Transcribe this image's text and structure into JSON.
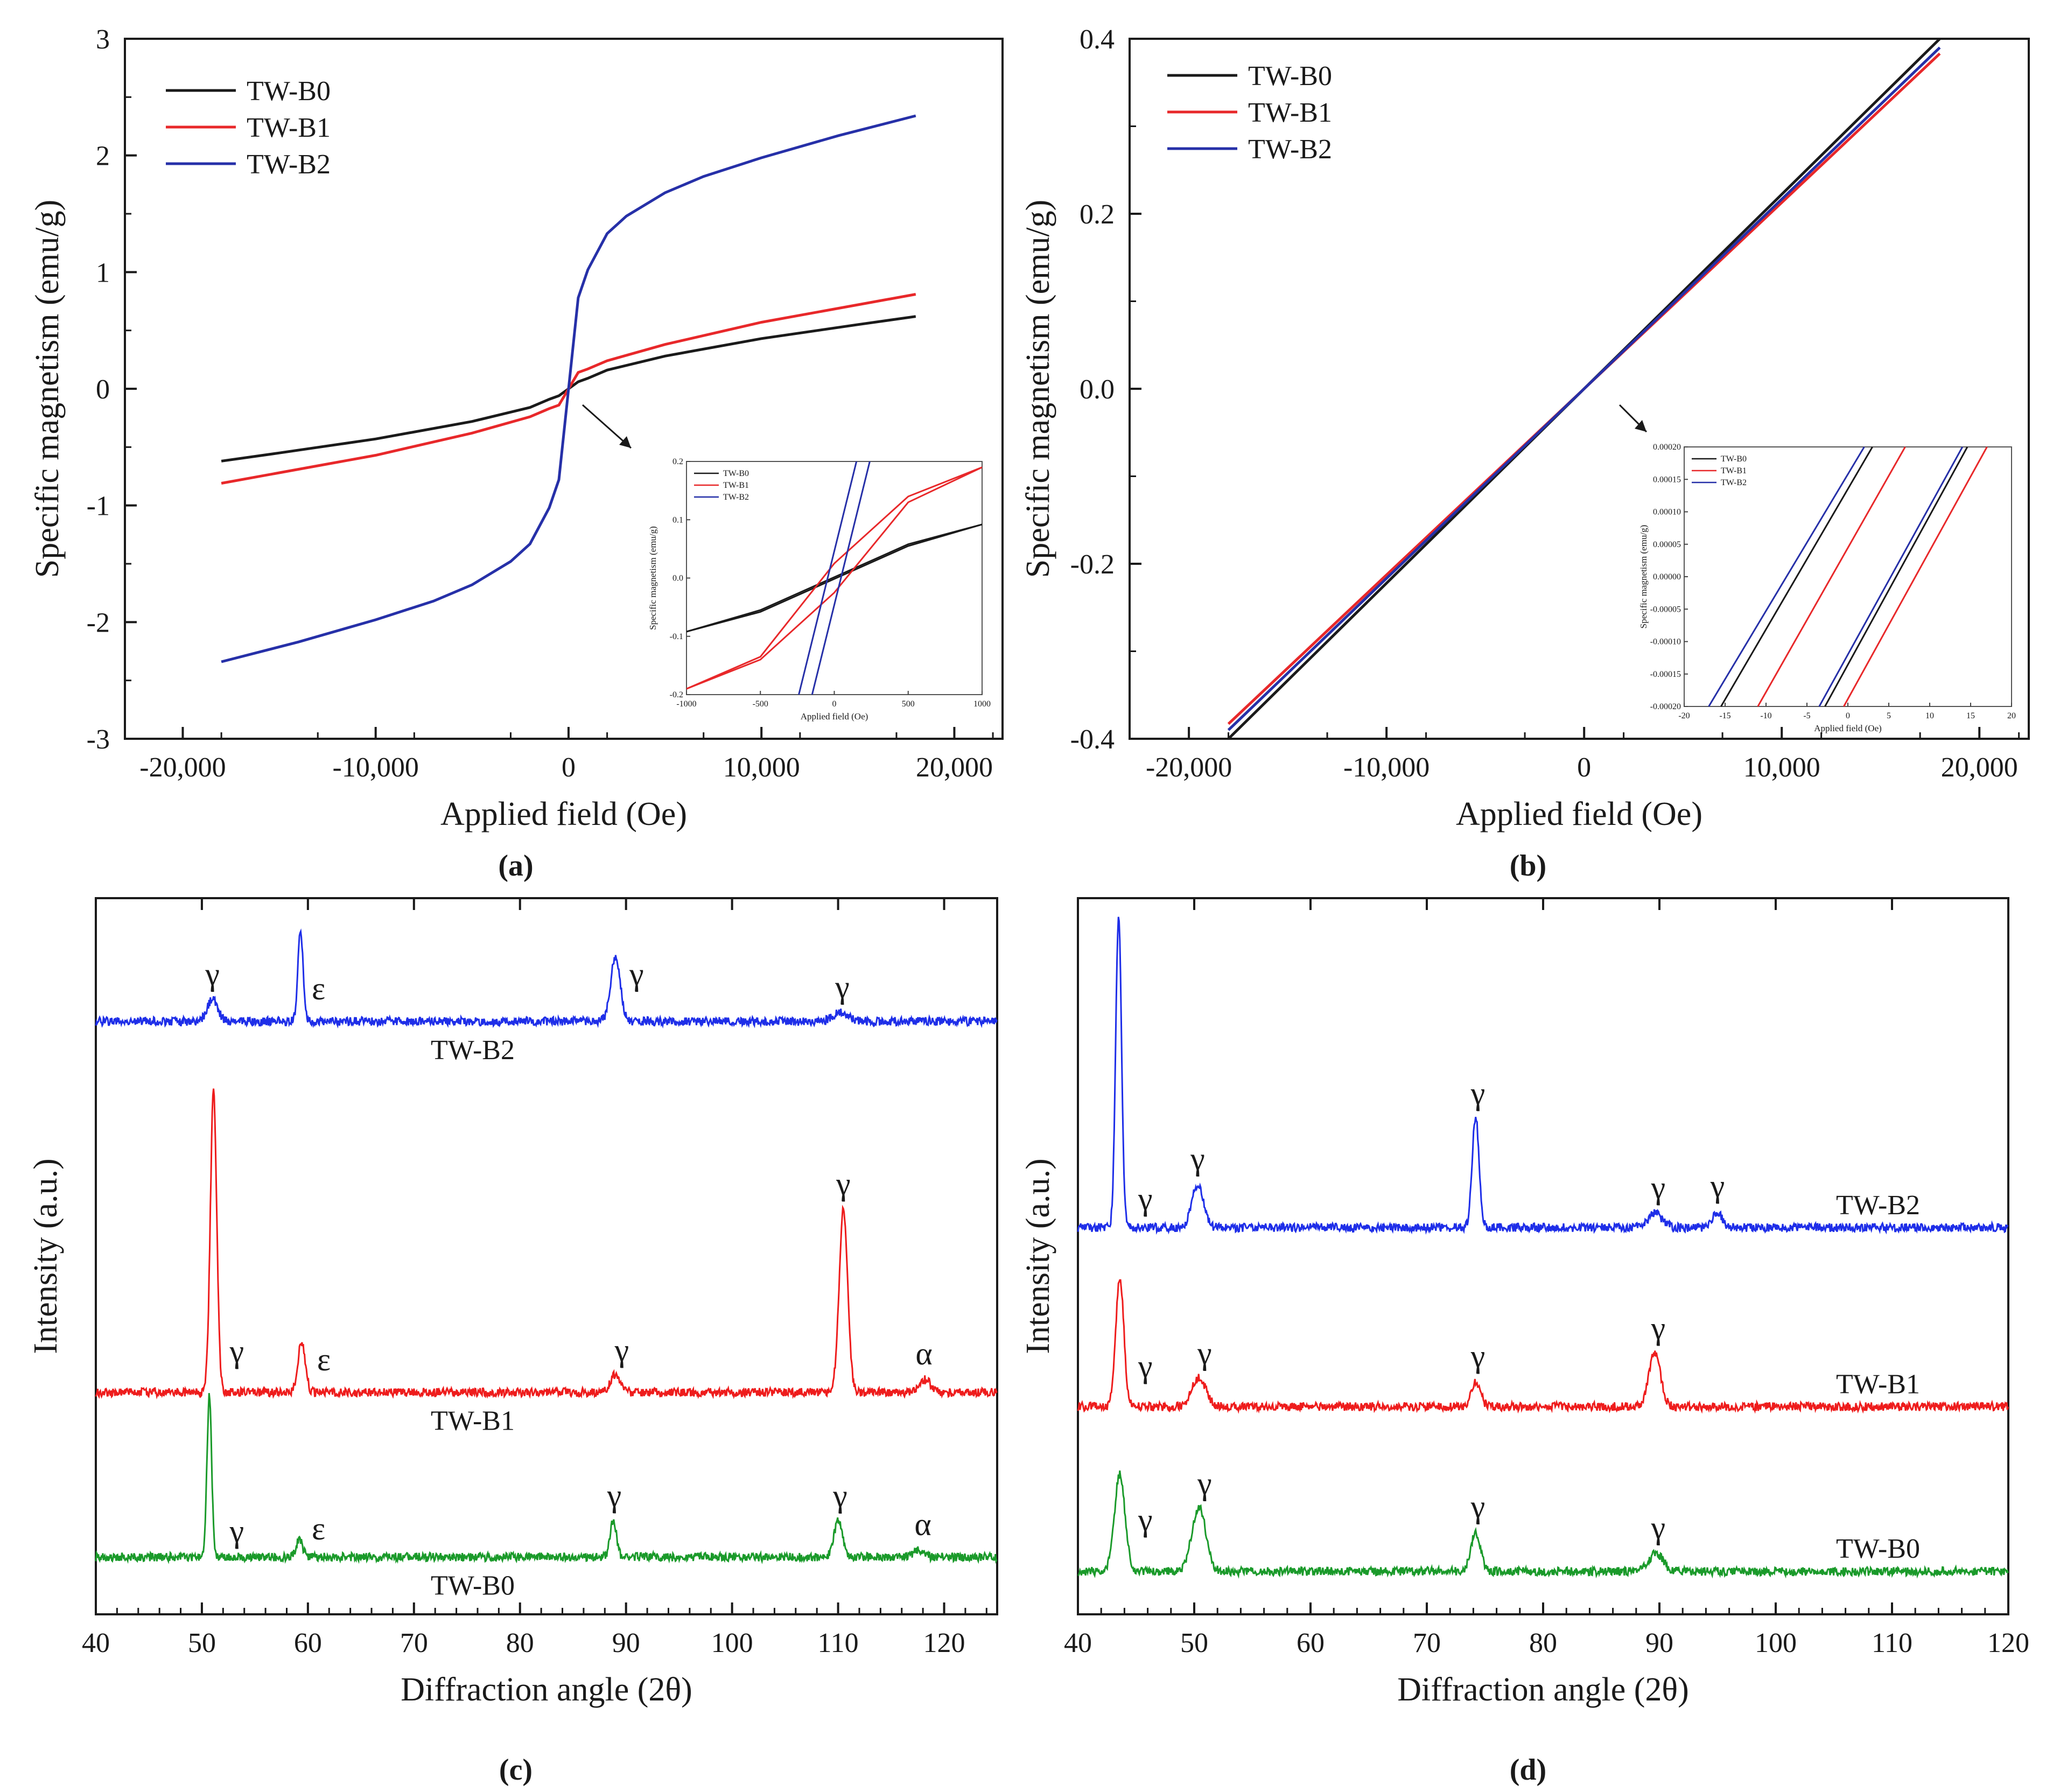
{
  "colors": {
    "TW-B0": "#1a1a1a",
    "TW-B1": "#e8282a",
    "TW-B2": "#2630a8",
    "xrd_b0": "#1a9a2a",
    "xrd_b1": "#ee1c1c",
    "xrd_b2": "#1e2ee8"
  },
  "chart_data": [
    {
      "panel": "(a)",
      "type": "line",
      "xlabel": "Applied field (Oe)",
      "ylabel": "Specific magnetism (emu/g)",
      "xlim": [
        -23000,
        22500
      ],
      "ylim": [
        -3,
        3
      ],
      "xticks": [
        -20000,
        -10000,
        0,
        10000,
        20000
      ],
      "xtick_labels": [
        "-20,000",
        "-10,000",
        "0",
        "10,000",
        "20,000"
      ],
      "yticks": [
        -3,
        -2,
        -1,
        0,
        1,
        2,
        3
      ],
      "ytick_labels": [
        "-3",
        "-2",
        "-1",
        "0",
        "1",
        "2",
        "3"
      ],
      "legend": [
        "TW-B0",
        "TW-B1",
        "TW-B2"
      ],
      "series": [
        {
          "name": "TW-B0",
          "x": [
            -18000,
            -15000,
            -10000,
            -5000,
            -2000,
            -1000,
            -500,
            0,
            500,
            1000,
            2000,
            5000,
            10000,
            15000,
            18000
          ],
          "y": [
            -0.62,
            -0.55,
            -0.43,
            -0.28,
            -0.16,
            -0.09,
            -0.06,
            0,
            0.06,
            0.09,
            0.16,
            0.28,
            0.43,
            0.55,
            0.62
          ]
        },
        {
          "name": "TW-B1",
          "x": [
            -18000,
            -15000,
            -10000,
            -5000,
            -2000,
            -1000,
            -500,
            0,
            500,
            1000,
            2000,
            5000,
            10000,
            15000,
            18000
          ],
          "y": [
            -0.81,
            -0.72,
            -0.57,
            -0.38,
            -0.24,
            -0.17,
            -0.14,
            0,
            0.14,
            0.17,
            0.24,
            0.38,
            0.57,
            0.72,
            0.81
          ]
        },
        {
          "name": "TW-B2",
          "x": [
            -18000,
            -14000,
            -10000,
            -7000,
            -5000,
            -3000,
            -2000,
            -1000,
            -500,
            0,
            500,
            1000,
            2000,
            3000,
            5000,
            7000,
            10000,
            14000,
            18000
          ],
          "y": [
            -2.34,
            -2.17,
            -1.98,
            -1.82,
            -1.68,
            -1.48,
            -1.33,
            -1.02,
            -0.78,
            0,
            0.78,
            1.02,
            1.33,
            1.48,
            1.68,
            1.82,
            1.98,
            2.17,
            2.34
          ]
        }
      ],
      "inset": {
        "xlabel": "Applied field (Oe)",
        "ylabel": "Specific magnetism (emu/g)",
        "xlim": [
          -1000,
          1000
        ],
        "ylim": [
          -0.2,
          0.2
        ],
        "xticks": [
          -1000,
          -500,
          0,
          500,
          1000
        ],
        "yticks": [
          -0.2,
          -0.1,
          0.0,
          0.1,
          0.2
        ],
        "ytick_labels": [
          "-0.2",
          "-0.1",
          "0.0",
          "0.1",
          "0.2"
        ],
        "legend": [
          "TW-B0",
          "TW-B1",
          "TW-B2"
        ],
        "loops": [
          {
            "name": "TW-B0",
            "upper": {
              "x": [
                -1000,
                -500,
                500,
                1000
              ],
              "y": [
                -0.092,
                -0.055,
                0.058,
                0.092
              ]
            },
            "lower": {
              "x": [
                -1000,
                -500,
                500,
                1000
              ],
              "y": [
                -0.092,
                -0.058,
                0.055,
                0.092
              ]
            }
          },
          {
            "name": "TW-B1",
            "upper": {
              "x": [
                -1000,
                -500,
                0,
                500,
                1000
              ],
              "y": [
                -0.19,
                -0.135,
                0.025,
                0.14,
                0.19
              ]
            },
            "lower": {
              "x": [
                -1000,
                -500,
                0,
                500,
                1000
              ],
              "y": [
                -0.19,
                -0.14,
                -0.025,
                0.13,
                0.19
              ]
            }
          },
          {
            "name": "TW-B2",
            "upper": {
              "x": [
                -150,
                240
              ],
              "y": [
                -0.2,
                0.2
              ]
            },
            "lower": {
              "x": [
                -240,
                150
              ],
              "y": [
                -0.2,
                0.2
              ]
            }
          }
        ]
      }
    },
    {
      "panel": "(b)",
      "type": "line",
      "xlabel": "Applied field (Oe)",
      "ylabel": "Specific magnetism (emu/g)",
      "xlim": [
        -23000,
        22500
      ],
      "ylim": [
        -0.4,
        0.4
      ],
      "xticks": [
        -20000,
        -10000,
        0,
        10000,
        20000
      ],
      "xtick_labels": [
        "-20,000",
        "-10,000",
        "0",
        "10,000",
        "20,000"
      ],
      "yticks": [
        -0.4,
        -0.2,
        0.0,
        0.2,
        0.4
      ],
      "ytick_labels": [
        "-0.4",
        "-0.2",
        "0.0",
        "0.2",
        "0.4"
      ],
      "legend": [
        "TW-B0",
        "TW-B1",
        "TW-B2"
      ],
      "series": [
        {
          "name": "TW-B0",
          "x": [
            -18000,
            18000
          ],
          "y": [
            -0.4,
            0.4
          ]
        },
        {
          "name": "TW-B1",
          "x": [
            -18000,
            18000
          ],
          "y": [
            -0.383,
            0.383
          ]
        },
        {
          "name": "TW-B2",
          "x": [
            -18000,
            18000
          ],
          "y": [
            -0.39,
            0.39
          ]
        }
      ],
      "inset": {
        "xlabel": "Applied field (Oe)",
        "ylabel": "Specific magnetism (emu/g)",
        "xlim": [
          -20,
          20
        ],
        "ylim": [
          -0.0002,
          0.0002
        ],
        "xticks": [
          -20,
          -15,
          -10,
          -5,
          0,
          5,
          10,
          15,
          20
        ],
        "yticks": [
          -0.0002,
          -0.00015,
          -0.0001,
          -5e-05,
          0,
          5e-05,
          0.0001,
          0.00015,
          0.0002
        ],
        "ytick_labels": [
          "-0.00020",
          "-0.00015",
          "-0.00010",
          "-0.00005",
          "0.00000",
          "0.00005",
          "0.00010",
          "0.00015",
          "0.00020"
        ],
        "legend": [
          "TW-B0",
          "TW-B1",
          "TW-B2"
        ],
        "lines": [
          {
            "name": "TW-B2",
            "x": [
              -17,
              2
            ]
          },
          {
            "name": "TW-B0",
            "x": [
              -15.5,
              3
            ]
          },
          {
            "name": "TW-B1",
            "x": [
              -11,
              7
            ]
          },
          {
            "name": "TW-B2",
            "x": [
              -3.5,
              14
            ]
          },
          {
            "name": "TW-B0",
            "x": [
              -2.8,
              14.6
            ]
          },
          {
            "name": "TW-B1",
            "x": [
              -0.5,
              17
            ]
          }
        ]
      }
    },
    {
      "panel": "(c)",
      "type": "line",
      "xlabel": "Diffraction angle (2θ)",
      "ylabel": "Intensity (a.u.)",
      "xlim": [
        40,
        125
      ],
      "xticks": [
        40,
        50,
        60,
        70,
        80,
        90,
        100,
        110,
        120
      ],
      "xtick_labels": [
        "40",
        "50",
        "60",
        "70",
        "80",
        "90",
        "100",
        "110",
        "120"
      ],
      "series": [
        {
          "name": "TW-B2",
          "baseline": 0.828,
          "noise": 0.006,
          "peaks": [
            {
              "pos": 51.0,
              "h": 0.03,
              "w": 0.5
            },
            {
              "pos": 59.3,
              "h": 0.123,
              "w": 0.25
            },
            {
              "pos": 89.0,
              "h": 0.09,
              "w": 0.45
            },
            {
              "pos": 110.2,
              "h": 0.012,
              "w": 0.7
            }
          ]
        },
        {
          "name": "TW-B1",
          "baseline": 0.31,
          "noise": 0.006,
          "peaks": [
            {
              "pos": 51.1,
              "h": 0.42,
              "w": 0.3
            },
            {
              "pos": 59.4,
              "h": 0.07,
              "w": 0.35
            },
            {
              "pos": 89.0,
              "h": 0.025,
              "w": 0.45
            },
            {
              "pos": 110.5,
              "h": 0.255,
              "w": 0.4
            },
            {
              "pos": 118.2,
              "h": 0.018,
              "w": 0.5
            }
          ]
        },
        {
          "name": "TW-B0",
          "baseline": 0.08,
          "noise": 0.006,
          "peaks": [
            {
              "pos": 50.7,
              "h": 0.225,
              "w": 0.22
            },
            {
              "pos": 59.2,
              "h": 0.025,
              "w": 0.3
            },
            {
              "pos": 88.8,
              "h": 0.05,
              "w": 0.3
            },
            {
              "pos": 110.0,
              "h": 0.05,
              "w": 0.4
            },
            {
              "pos": 117.6,
              "h": 0.01,
              "w": 0.5
            }
          ]
        }
      ],
      "annotations": [
        {
          "text": "γ",
          "x": 51.0,
          "series": "TW-B2"
        },
        {
          "text": "ε",
          "x": 61.0,
          "series": "TW-B2"
        },
        {
          "text": "γ",
          "x": 91.0,
          "series": "TW-B2"
        },
        {
          "text": "γ",
          "x": 110.4,
          "series": "TW-B2"
        },
        {
          "text": "γ",
          "x": 53.3,
          "series": "TW-B1"
        },
        {
          "text": "ε",
          "x": 61.5,
          "series": "TW-B1"
        },
        {
          "text": "γ",
          "x": 89.6,
          "series": "TW-B1"
        },
        {
          "text": "γ",
          "x": 110.5,
          "series": "TW-B1"
        },
        {
          "text": "α",
          "x": 118.1,
          "series": "TW-B1"
        },
        {
          "text": "γ",
          "x": 53.3,
          "series": "TW-B0"
        },
        {
          "text": "ε",
          "x": 61.0,
          "series": "TW-B0"
        },
        {
          "text": "γ",
          "x": 88.9,
          "series": "TW-B0"
        },
        {
          "text": "γ",
          "x": 110.2,
          "series": "TW-B0"
        },
        {
          "text": "α",
          "x": 118.0,
          "series": "TW-B0"
        }
      ],
      "sample_labels": [
        "TW-B2",
        "TW-B1",
        "TW-B0"
      ]
    },
    {
      "panel": "(d)",
      "type": "line",
      "xlabel": "Diffraction angle (2θ)",
      "ylabel": "Intensity (a.u.)",
      "xlim": [
        40,
        120
      ],
      "xticks": [
        40,
        50,
        60,
        70,
        80,
        90,
        100,
        110,
        120
      ],
      "xtick_labels": [
        "40",
        "50",
        "60",
        "70",
        "80",
        "90",
        "100",
        "110",
        "120"
      ],
      "series": [
        {
          "name": "TW-B2",
          "baseline": 0.54,
          "noise": 0.006,
          "peaks": [
            {
              "pos": 43.5,
              "h": 0.435,
              "w": 0.25
            },
            {
              "pos": 50.3,
              "h": 0.06,
              "w": 0.5
            },
            {
              "pos": 74.2,
              "h": 0.155,
              "w": 0.3
            },
            {
              "pos": 89.6,
              "h": 0.02,
              "w": 0.6
            },
            {
              "pos": 95.0,
              "h": 0.022,
              "w": 0.4
            }
          ]
        },
        {
          "name": "TW-B1",
          "baseline": 0.29,
          "noise": 0.006,
          "peaks": [
            {
              "pos": 43.6,
              "h": 0.18,
              "w": 0.35
            },
            {
              "pos": 50.4,
              "h": 0.04,
              "w": 0.6
            },
            {
              "pos": 74.2,
              "h": 0.035,
              "w": 0.4
            },
            {
              "pos": 89.6,
              "h": 0.075,
              "w": 0.5
            }
          ]
        },
        {
          "name": "TW-B0",
          "baseline": 0.06,
          "noise": 0.006,
          "peaks": [
            {
              "pos": 43.6,
              "h": 0.135,
              "w": 0.45
            },
            {
              "pos": 50.4,
              "h": 0.09,
              "w": 0.6
            },
            {
              "pos": 74.2,
              "h": 0.055,
              "w": 0.4
            },
            {
              "pos": 89.7,
              "h": 0.025,
              "w": 0.6
            }
          ]
        }
      ],
      "annotations": [
        {
          "text": "γ",
          "x": 45.8,
          "series": "TW-B2"
        },
        {
          "text": "γ",
          "x": 50.3,
          "series": "TW-B2"
        },
        {
          "text": "γ",
          "x": 74.4,
          "series": "TW-B2"
        },
        {
          "text": "γ",
          "x": 89.9,
          "series": "TW-B2"
        },
        {
          "text": "γ",
          "x": 95.0,
          "series": "TW-B2"
        },
        {
          "text": "γ",
          "x": 45.8,
          "series": "TW-B1"
        },
        {
          "text": "γ",
          "x": 50.9,
          "series": "TW-B1"
        },
        {
          "text": "γ",
          "x": 74.4,
          "series": "TW-B1"
        },
        {
          "text": "γ",
          "x": 89.9,
          "series": "TW-B1"
        },
        {
          "text": "γ",
          "x": 45.8,
          "series": "TW-B0"
        },
        {
          "text": "γ",
          "x": 50.9,
          "series": "TW-B0"
        },
        {
          "text": "γ",
          "x": 74.4,
          "series": "TW-B0"
        },
        {
          "text": "γ",
          "x": 89.9,
          "series": "TW-B0"
        }
      ],
      "sample_labels": [
        "TW-B2",
        "TW-B1",
        "TW-B0"
      ]
    }
  ]
}
